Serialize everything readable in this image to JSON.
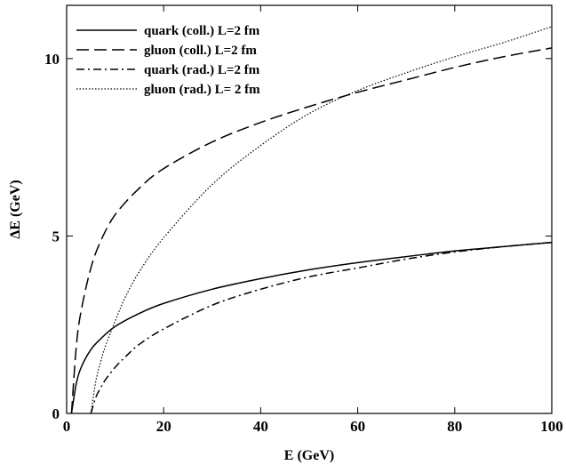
{
  "chart_data": {
    "type": "line",
    "title": "",
    "xlabel": "E (GeV)",
    "ylabel": "ΔE (GeV)",
    "xlim": [
      0,
      100
    ],
    "ylim": [
      0,
      11.5
    ],
    "xticks": [
      {
        "value": 0,
        "label": "0"
      },
      {
        "value": 20,
        "label": "20"
      },
      {
        "value": 40,
        "label": "40"
      },
      {
        "value": 60,
        "label": "60"
      },
      {
        "value": 80,
        "label": "80"
      },
      {
        "value": 100,
        "label": "100"
      }
    ],
    "yticks": [
      {
        "value": 0,
        "label": "0"
      },
      {
        "value": 5,
        "label": "5"
      },
      {
        "value": 10,
        "label": "10"
      }
    ],
    "grid": false,
    "legend_position": "top-left",
    "series": [
      {
        "name": "quark (coll.) L=2 fm",
        "style": "solid",
        "color": "#000000",
        "x": [
          1,
          2,
          3,
          5,
          7,
          10,
          15,
          20,
          30,
          40,
          50,
          60,
          70,
          80,
          90,
          100
        ],
        "y": [
          0.0,
          0.85,
          1.3,
          1.8,
          2.1,
          2.45,
          2.82,
          3.1,
          3.5,
          3.8,
          4.05,
          4.25,
          4.42,
          4.58,
          4.7,
          4.82
        ]
      },
      {
        "name": "gluon (coll.) L=2 fm",
        "style": "dashed",
        "color": "#000000",
        "x": [
          1,
          2,
          3,
          5,
          7,
          10,
          15,
          20,
          30,
          40,
          50,
          60,
          70,
          80,
          90,
          100
        ],
        "y": [
          0.0,
          1.9,
          2.9,
          4.1,
          4.85,
          5.6,
          6.35,
          6.9,
          7.65,
          8.2,
          8.65,
          9.05,
          9.4,
          9.75,
          10.05,
          10.3
        ]
      },
      {
        "name": "quark (rad.) L=2 fm",
        "style": "dashdot",
        "color": "#000000",
        "x": [
          5,
          6,
          7,
          8,
          10,
          12,
          15,
          20,
          30,
          40,
          50,
          60,
          70,
          80,
          90,
          100
        ],
        "y": [
          0.0,
          0.45,
          0.72,
          0.95,
          1.3,
          1.58,
          1.95,
          2.38,
          3.05,
          3.5,
          3.85,
          4.1,
          4.35,
          4.55,
          4.7,
          4.82
        ]
      },
      {
        "name": "gluon (rad.) L= 2 fm",
        "style": "dotted",
        "color": "#000000",
        "x": [
          5,
          6,
          7,
          8,
          10,
          12,
          15,
          20,
          30,
          40,
          50,
          60,
          70,
          80,
          90,
          100
        ],
        "y": [
          0.0,
          0.9,
          1.45,
          1.9,
          2.6,
          3.25,
          4.0,
          4.95,
          6.45,
          7.55,
          8.45,
          9.1,
          9.6,
          10.05,
          10.45,
          10.9
        ]
      }
    ]
  }
}
